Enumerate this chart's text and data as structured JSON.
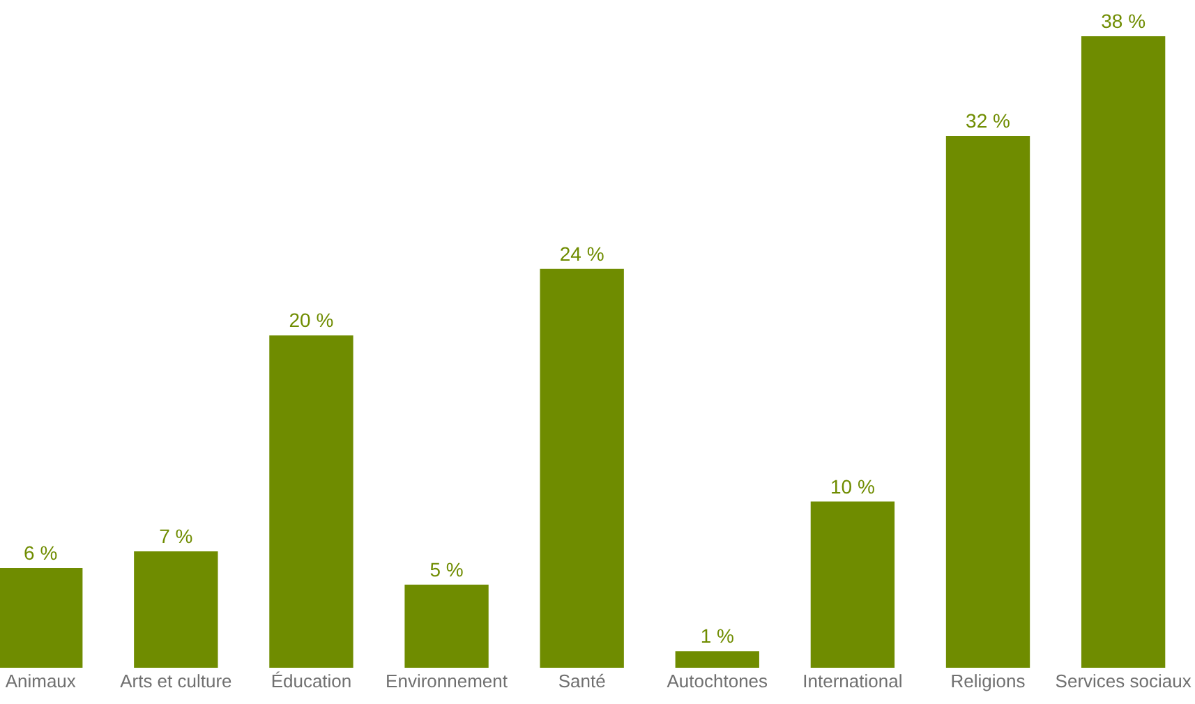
{
  "chart_data": {
    "type": "bar",
    "categories": [
      "Animaux",
      "Arts et culture",
      "Éducation",
      "Environnement",
      "Santé",
      "Autochtones",
      "International",
      "Religions",
      "Services sociaux"
    ],
    "values": [
      6,
      7,
      20,
      5,
      24,
      1,
      10,
      32,
      38
    ],
    "value_labels": [
      "6 %",
      "7 %",
      "20 %",
      "5 %",
      "24 %",
      "1 %",
      "10 %",
      "32 %",
      "38 %"
    ],
    "color": "#6f8c00"
  }
}
